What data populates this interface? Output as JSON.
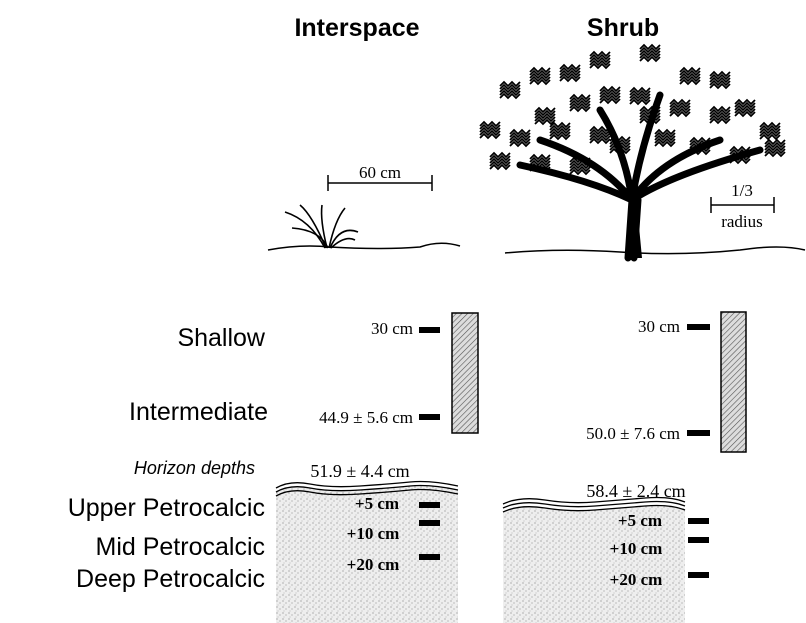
{
  "headers": [
    "Interspace",
    "Shrub"
  ],
  "scale_bars": {
    "interspace": "60 cm",
    "shrub": [
      "1/3",
      "radius"
    ]
  },
  "depth_labels": [
    "Shallow",
    "Intermediate",
    "Horizon depths",
    "Upper Petrocalcic",
    "Mid Petrocalcic",
    "Deep Petrocalcic"
  ],
  "interspace": {
    "depths": [
      "30 cm",
      "44.9 ± 5.6 cm"
    ],
    "horizon": "51.9 ± 4.4 cm",
    "petrocalcic": [
      "+5 cm",
      "+10 cm",
      "+20 cm"
    ]
  },
  "shrub": {
    "depths": [
      "30 cm",
      "50.0 ± 7.6 cm"
    ],
    "horizon": "58.4 ± 2.4 cm",
    "petrocalcic": [
      "+5 cm",
      "+10 cm",
      "+20 cm"
    ]
  }
}
